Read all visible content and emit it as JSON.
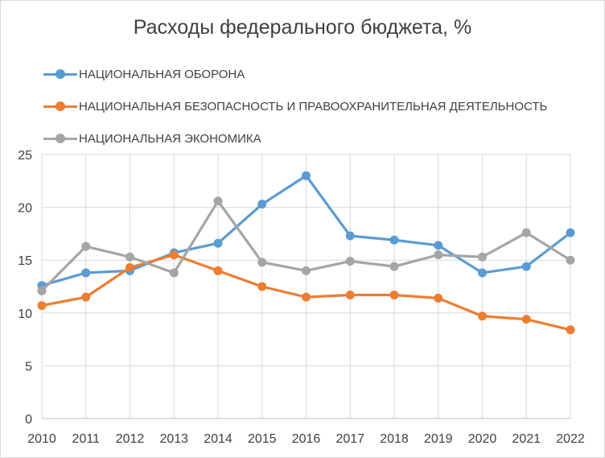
{
  "chart_data": {
    "type": "line",
    "title": "Расходы федерального бюджета, %",
    "categories": [
      "2010",
      "2011",
      "2012",
      "2013",
      "2014",
      "2015",
      "2016",
      "2017",
      "2018",
      "2019",
      "2020",
      "2021",
      "2022"
    ],
    "ylim": [
      0,
      25
    ],
    "yticks": [
      "0",
      "5",
      "10",
      "15",
      "20",
      "25"
    ],
    "grid": true,
    "legend_position": "top-left",
    "series": [
      {
        "name": "НАЦИОНАЛЬНАЯ ОБОРОНА",
        "color": "#5b9bd5",
        "values": [
          12.6,
          13.8,
          14.0,
          15.7,
          16.6,
          20.3,
          23.0,
          17.3,
          16.9,
          16.4,
          13.8,
          14.4,
          17.6
        ]
      },
      {
        "name": "НАЦИОНАЛЬНАЯ БЕЗОПАСНОСТЬ И ПРАВООХРАНИТЕЛЬНАЯ ДЕЯТЕЛЬНОСТЬ",
        "color": "#ed7d31",
        "values": [
          10.7,
          11.5,
          14.3,
          15.5,
          14.0,
          12.5,
          11.5,
          11.7,
          11.7,
          11.4,
          9.7,
          9.4,
          8.4
        ]
      },
      {
        "name": "НАЦИОНАЛЬНАЯ ЭКОНОМИКА",
        "color": "#a5a5a5",
        "values": [
          12.1,
          16.3,
          15.3,
          13.8,
          20.6,
          14.8,
          14.0,
          14.9,
          14.4,
          15.5,
          15.3,
          17.6,
          15.0
        ]
      }
    ]
  }
}
